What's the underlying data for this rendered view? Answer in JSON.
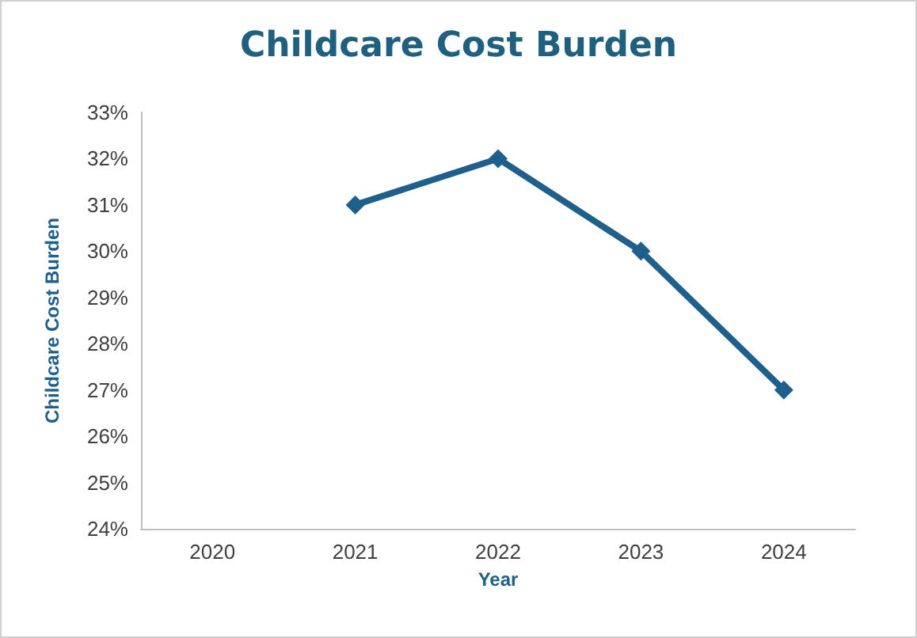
{
  "chart_data": {
    "type": "line",
    "title": "Childcare Cost Burden",
    "xlabel": "Year",
    "ylabel": "Childcare Cost Burden",
    "categories": [
      "2020",
      "2021",
      "2022",
      "2023",
      "2024"
    ],
    "series": [
      {
        "color": "#1f5f8b",
        "values": [
          null,
          31,
          32,
          30,
          27
        ]
      }
    ],
    "ylim": [
      24,
      33
    ],
    "yticks": [
      {
        "value": 24,
        "label": "24%"
      },
      {
        "value": 25,
        "label": "25%"
      },
      {
        "value": 26,
        "label": "26%"
      },
      {
        "value": 27,
        "label": "27%"
      },
      {
        "value": 28,
        "label": "28%"
      },
      {
        "value": 29,
        "label": "29%"
      },
      {
        "value": 30,
        "label": "30%"
      },
      {
        "value": 31,
        "label": "31%"
      },
      {
        "value": 32,
        "label": "32%"
      },
      {
        "value": 33,
        "label": "33%"
      }
    ],
    "grid": false,
    "marker": "diamond",
    "line_style": "solid"
  }
}
